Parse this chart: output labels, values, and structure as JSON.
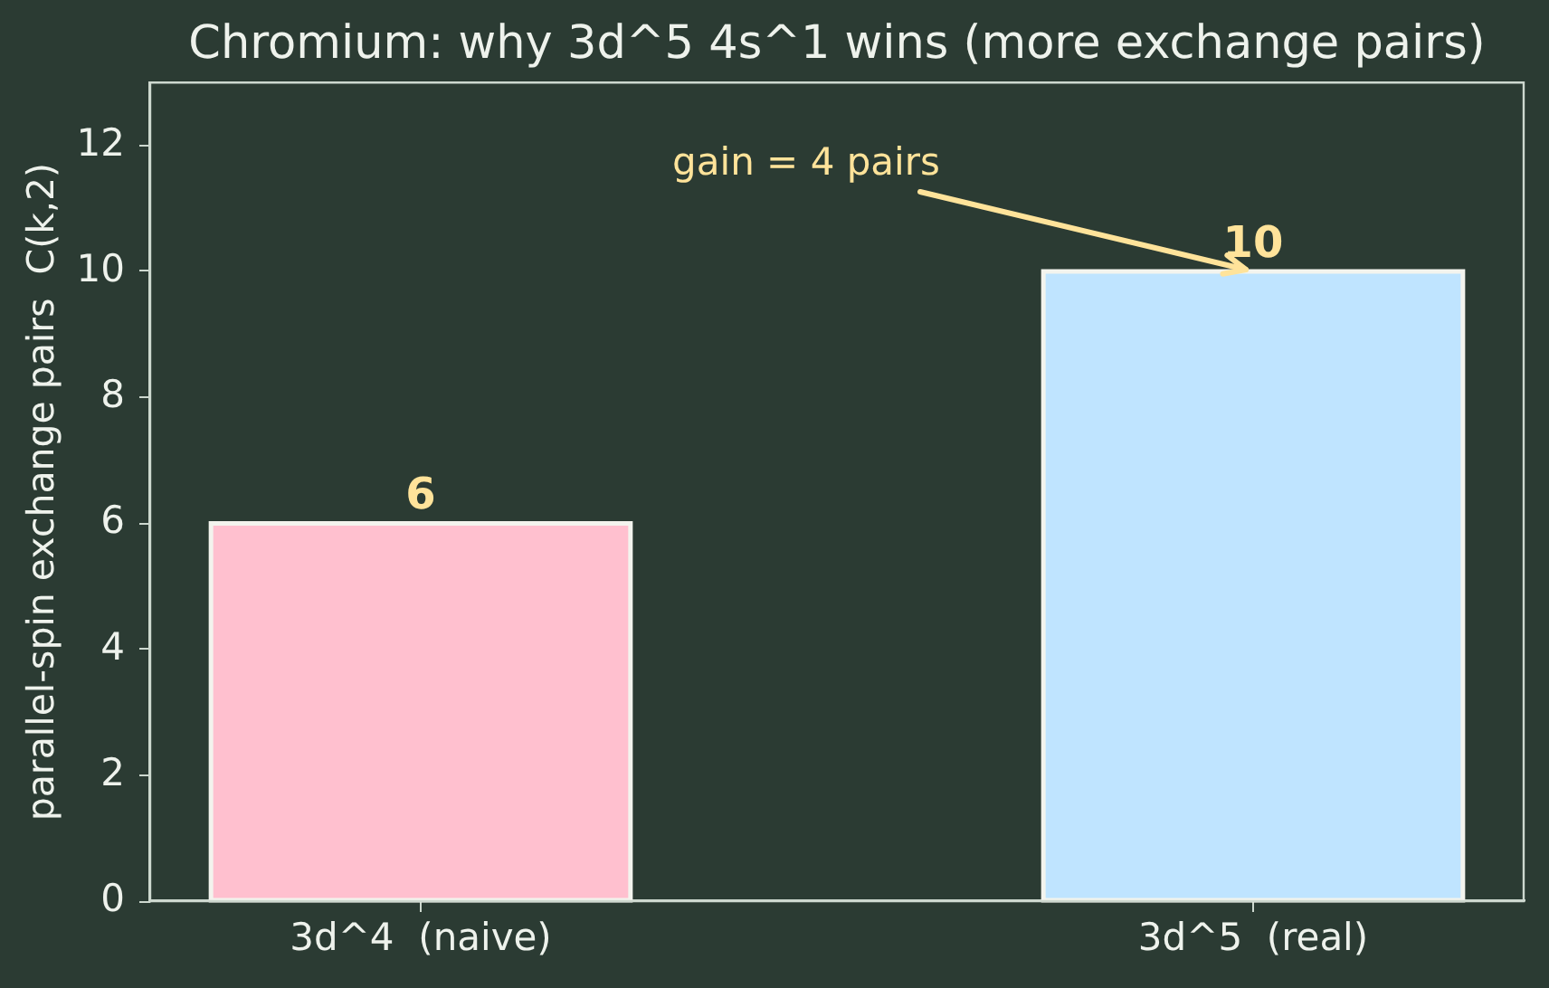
{
  "chart_data": {
    "type": "bar",
    "title": "Chromium: why 3d^5 4s^1 wins (more exchange pairs)",
    "ylabel": "parallel-spin exchange pairs  C(k,2)",
    "categories": [
      "3d^4  (naive)",
      "3d^5  (real)"
    ],
    "values": [
      6,
      10
    ],
    "colors": [
      "#ffc0cf",
      "#bfe4ff"
    ],
    "ylim": [
      0,
      13
    ],
    "yticks": [
      0,
      2,
      4,
      6,
      8,
      10,
      12
    ],
    "grid": false,
    "legend": false,
    "data_labels": true,
    "annotations": [
      {
        "text": "gain = 4 pairs",
        "x": "3d^5  (real)",
        "y": 10
      }
    ]
  }
}
